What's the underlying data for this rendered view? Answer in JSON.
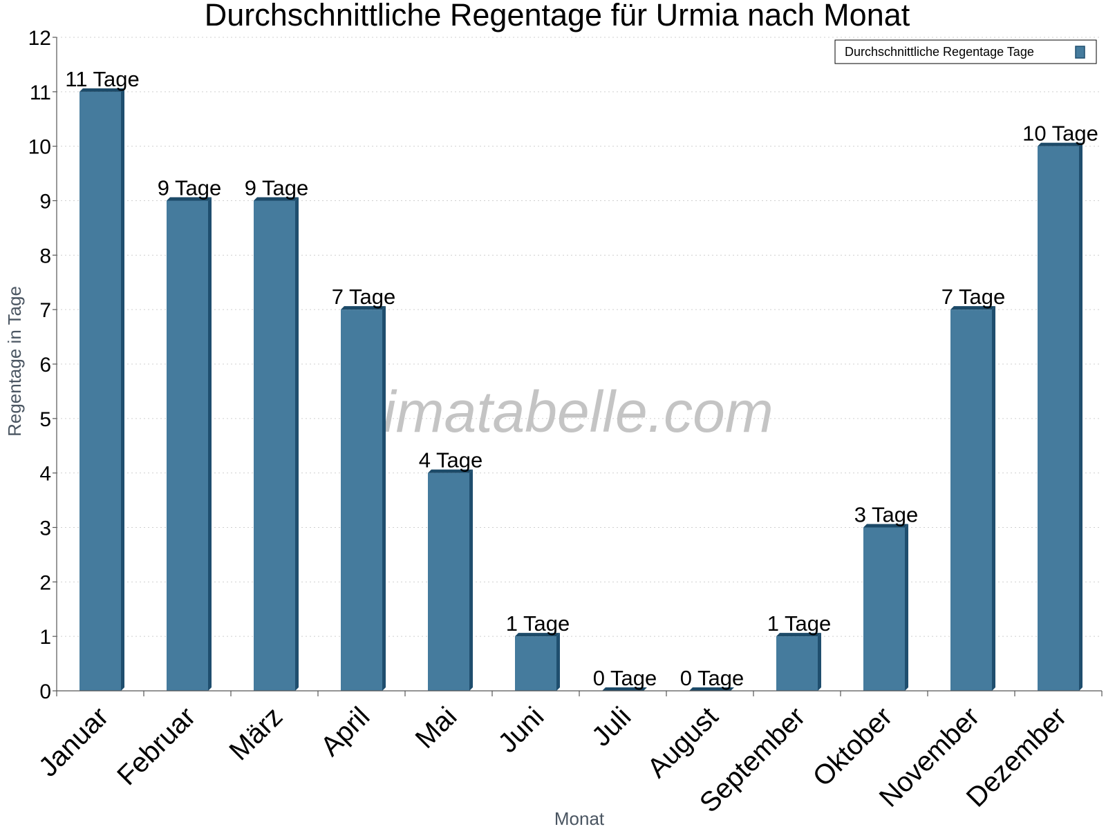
{
  "chart_data": {
    "type": "bar",
    "title": "Durchschnittliche Regentage für Urmia nach Monat",
    "xlabel": "Monat",
    "ylabel": "Regentage in Tage",
    "categories": [
      "Januar",
      "Februar",
      "März",
      "April",
      "Mai",
      "Juni",
      "Juli",
      "August",
      "September",
      "Oktober",
      "November",
      "Dezember"
    ],
    "series": [
      {
        "name": "Durchschnittliche Regentage Tage",
        "values": [
          11,
          9,
          9,
          7,
          4,
          1,
          0,
          0,
          1,
          3,
          7,
          10
        ],
        "labels": [
          "11 Tage",
          "9 Tage",
          "9 Tage",
          "7 Tage",
          "4 Tage",
          "1 Tage",
          "0 Tage",
          "0 Tage",
          "1 Tage",
          "3 Tage",
          "7 Tage",
          "10 Tage"
        ]
      }
    ],
    "yticks": [
      "0",
      "1",
      "2",
      "3",
      "4",
      "5",
      "6",
      "7",
      "8",
      "9",
      "10",
      "11",
      "12"
    ],
    "ylim": [
      0,
      12
    ],
    "grid": true,
    "legend_position": "top-right",
    "colors": {
      "bar": "#457b9d",
      "bar_side": "#1f4e6e",
      "bar_top": "#1c4a68"
    }
  },
  "watermark": "klimatabelle.com"
}
